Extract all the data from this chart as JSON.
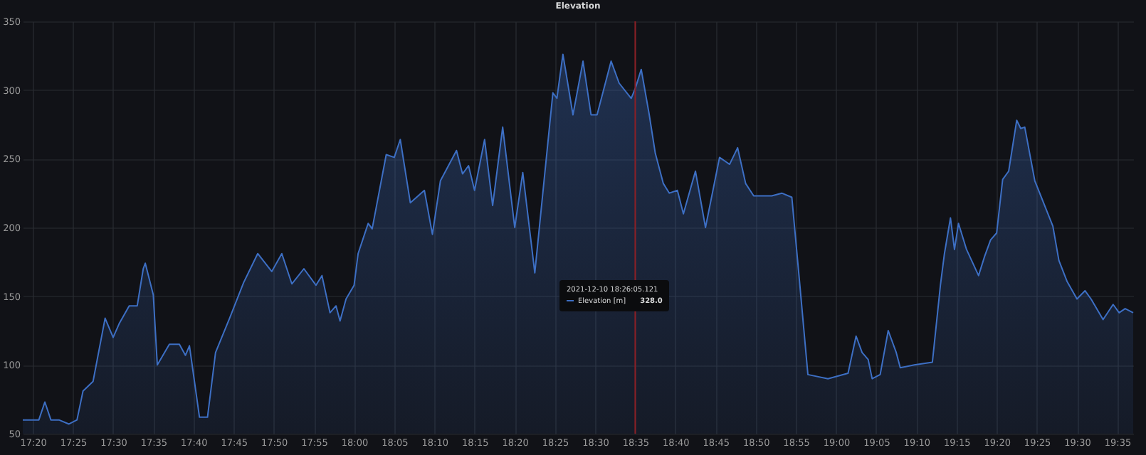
{
  "chart_data": {
    "type": "area",
    "title": "Elevation",
    "x": [
      "2021-12-10T17:18:45",
      "2021-12-10T17:20:45",
      "2021-12-10T17:21:30",
      "2021-12-10T17:22:15",
      "2021-12-10T17:23:15",
      "2021-12-10T17:24:30",
      "2021-12-10T17:25:30",
      "2021-12-10T17:26:15",
      "2021-12-10T17:27:30",
      "2021-12-10T17:29:00",
      "2021-12-10T17:30:00",
      "2021-12-10T17:30:45",
      "2021-12-10T17:32:00",
      "2021-12-10T17:33:00",
      "2021-12-10T17:33:45",
      "2021-12-10T17:34:00",
      "2021-12-10T17:35:00",
      "2021-12-10T17:35:30",
      "2021-12-10T17:37:00",
      "2021-12-10T17:38:15",
      "2021-12-10T17:39:00",
      "2021-12-10T17:39:30",
      "2021-12-10T17:40:45",
      "2021-12-10T17:41:45",
      "2021-12-10T17:42:45",
      "2021-12-10T17:44:30",
      "2021-12-10T17:46:15",
      "2021-12-10T17:48:00",
      "2021-12-10T17:49:45",
      "2021-12-10T17:51:00",
      "2021-12-10T17:52:15",
      "2021-12-10T17:53:45",
      "2021-12-10T17:55:15",
      "2021-12-10T17:56:00",
      "2021-12-10T17:57:00",
      "2021-12-10T17:57:45",
      "2021-12-10T17:58:15",
      "2021-12-10T17:59:00",
      "2021-12-10T18:00:00",
      "2021-12-10T18:00:30",
      "2021-12-10T18:01:45",
      "2021-12-10T18:02:15",
      "2021-12-10T18:04:00",
      "2021-12-10T18:05:00",
      "2021-12-10T18:05:45",
      "2021-12-10T18:07:00",
      "2021-12-10T18:08:45",
      "2021-12-10T18:09:45",
      "2021-12-10T18:10:45",
      "2021-12-10T18:12:45",
      "2021-12-10T18:13:30",
      "2021-12-10T18:14:15",
      "2021-12-10T18:15:00",
      "2021-12-10T18:16:15",
      "2021-12-10T18:17:15",
      "2021-12-10T18:18:30",
      "2021-12-10T18:20:00",
      "2021-12-10T18:21:00",
      "2021-12-10T18:22:30",
      "2021-12-10T18:24:45",
      "2021-12-10T18:25:15",
      "2021-12-10T18:26:00",
      "2021-12-10T18:27:15",
      "2021-12-10T18:28:30",
      "2021-12-10T18:29:30",
      "2021-12-10T18:30:15",
      "2021-12-10T18:32:00",
      "2021-12-10T18:33:00",
      "2021-12-10T18:34:30",
      "2021-12-10T18:35:00",
      "2021-12-10T18:35:45",
      "2021-12-10T18:36:45",
      "2021-12-10T18:37:30",
      "2021-12-10T18:38:30",
      "2021-12-10T18:39:15",
      "2021-12-10T18:40:15",
      "2021-12-10T18:41:00",
      "2021-12-10T18:42:30",
      "2021-12-10T18:43:45",
      "2021-12-10T18:45:30",
      "2021-12-10T18:46:45",
      "2021-12-10T18:47:45",
      "2021-12-10T18:48:45",
      "2021-12-10T18:49:45",
      "2021-12-10T18:52:00",
      "2021-12-10T18:53:15",
      "2021-12-10T18:54:30",
      "2021-12-10T18:55:30",
      "2021-12-10T18:56:30",
      "2021-12-10T18:59:00",
      "2021-12-10T19:01:30",
      "2021-12-10T19:02:30",
      "2021-12-10T19:03:15",
      "2021-12-10T19:04:00",
      "2021-12-10T19:04:30",
      "2021-12-10T19:05:30",
      "2021-12-10T19:06:30",
      "2021-12-10T19:07:30",
      "2021-12-10T19:08:00",
      "2021-12-10T19:09:45",
      "2021-12-10T19:12:00",
      "2021-12-10T19:13:00",
      "2021-12-10T19:13:30",
      "2021-12-10T19:14:15",
      "2021-12-10T19:14:45",
      "2021-12-10T19:15:15",
      "2021-12-10T19:16:15",
      "2021-12-10T19:17:45",
      "2021-12-10T19:18:30",
      "2021-12-10T19:19:15",
      "2021-12-10T19:20:00",
      "2021-12-10T19:20:45",
      "2021-12-10T19:21:30",
      "2021-12-10T19:22:30",
      "2021-12-10T19:23:00",
      "2021-12-10T19:23:30",
      "2021-12-10T19:24:45",
      "2021-12-10T19:27:00",
      "2021-12-10T19:27:45",
      "2021-12-10T19:28:45",
      "2021-12-10T19:30:00",
      "2021-12-10T19:31:00",
      "2021-12-10T19:31:45",
      "2021-12-10T19:33:15",
      "2021-12-10T19:34:30",
      "2021-12-10T19:35:15",
      "2021-12-10T19:36:00",
      "2021-12-10T19:37:00"
    ],
    "series": [
      {
        "name": "Elevation [m]",
        "color": "#3d6fc4",
        "values": [
          60,
          60,
          73,
          60,
          60,
          57,
          60,
          81,
          88,
          134,
          120,
          130,
          143,
          143,
          170,
          174,
          151,
          100,
          115,
          115,
          107,
          114,
          62,
          62,
          109,
          134,
          160,
          181,
          168,
          181,
          159,
          170,
          158,
          165,
          138,
          143,
          132,
          148,
          158,
          181,
          203,
          199,
          253,
          251,
          264,
          218,
          227,
          195,
          234,
          256,
          239,
          245,
          227,
          264,
          216,
          273,
          200,
          240,
          167,
          298,
          294,
          326,
          282,
          321,
          282,
          282,
          321,
          305,
          294,
          301,
          315,
          282,
          254,
          232,
          225,
          227,
          210,
          241,
          200,
          251,
          246,
          258,
          232,
          223,
          223,
          225,
          222,
          158,
          93,
          90,
          94,
          121,
          109,
          104,
          90,
          93,
          125,
          109,
          98,
          100,
          102,
          158,
          181,
          207,
          184,
          203,
          184,
          165,
          179,
          191,
          196,
          235,
          241,
          278,
          272,
          273,
          234,
          201,
          176,
          161,
          148,
          154,
          148,
          133,
          144,
          138,
          141,
          138
        ]
      }
    ],
    "xlim": [
      "2021-12-10T17:18:45",
      "2021-12-10T19:37:00"
    ],
    "xticks": [
      {
        "value": "2021-12-10T17:20",
        "label": "17:20"
      },
      {
        "value": "2021-12-10T17:25",
        "label": "17:25"
      },
      {
        "value": "2021-12-10T17:30",
        "label": "17:30"
      },
      {
        "value": "2021-12-10T17:35",
        "label": "17:35"
      },
      {
        "value": "2021-12-10T17:40",
        "label": "17:40"
      },
      {
        "value": "2021-12-10T17:45",
        "label": "17:45"
      },
      {
        "value": "2021-12-10T17:50",
        "label": "17:50"
      },
      {
        "value": "2021-12-10T17:55",
        "label": "17:55"
      },
      {
        "value": "2021-12-10T18:00",
        "label": "18:00"
      },
      {
        "value": "2021-12-10T18:05",
        "label": "18:05"
      },
      {
        "value": "2021-12-10T18:10",
        "label": "18:10"
      },
      {
        "value": "2021-12-10T18:15",
        "label": "18:15"
      },
      {
        "value": "2021-12-10T18:20",
        "label": "18:20"
      },
      {
        "value": "2021-12-10T18:25",
        "label": "18:25"
      },
      {
        "value": "2021-12-10T18:30",
        "label": "18:30"
      },
      {
        "value": "2021-12-10T18:35",
        "label": "18:35"
      },
      {
        "value": "2021-12-10T18:40",
        "label": "18:40"
      },
      {
        "value": "2021-12-10T18:45",
        "label": "18:45"
      },
      {
        "value": "2021-12-10T18:50",
        "label": "18:50"
      },
      {
        "value": "2021-12-10T18:55",
        "label": "18:55"
      },
      {
        "value": "2021-12-10T19:00",
        "label": "19:00"
      },
      {
        "value": "2021-12-10T19:05",
        "label": "19:05"
      },
      {
        "value": "2021-12-10T19:10",
        "label": "19:10"
      },
      {
        "value": "2021-12-10T19:15",
        "label": "19:15"
      },
      {
        "value": "2021-12-10T19:20",
        "label": "19:20"
      },
      {
        "value": "2021-12-10T19:25",
        "label": "19:25"
      },
      {
        "value": "2021-12-10T19:30",
        "label": "19:30"
      },
      {
        "value": "2021-12-10T19:35",
        "label": "19:35"
      }
    ],
    "ylim": [
      50,
      350
    ],
    "yticks": [
      50,
      100,
      150,
      200,
      250,
      300,
      350
    ],
    "grid": true,
    "ref_lines": [
      {
        "axis": "x",
        "value": "2021-12-10T18:35",
        "color": "#8b1e24"
      }
    ],
    "annotations": [
      "2021-12-10 18:26:05.121",
      "328.0"
    ]
  }
}
